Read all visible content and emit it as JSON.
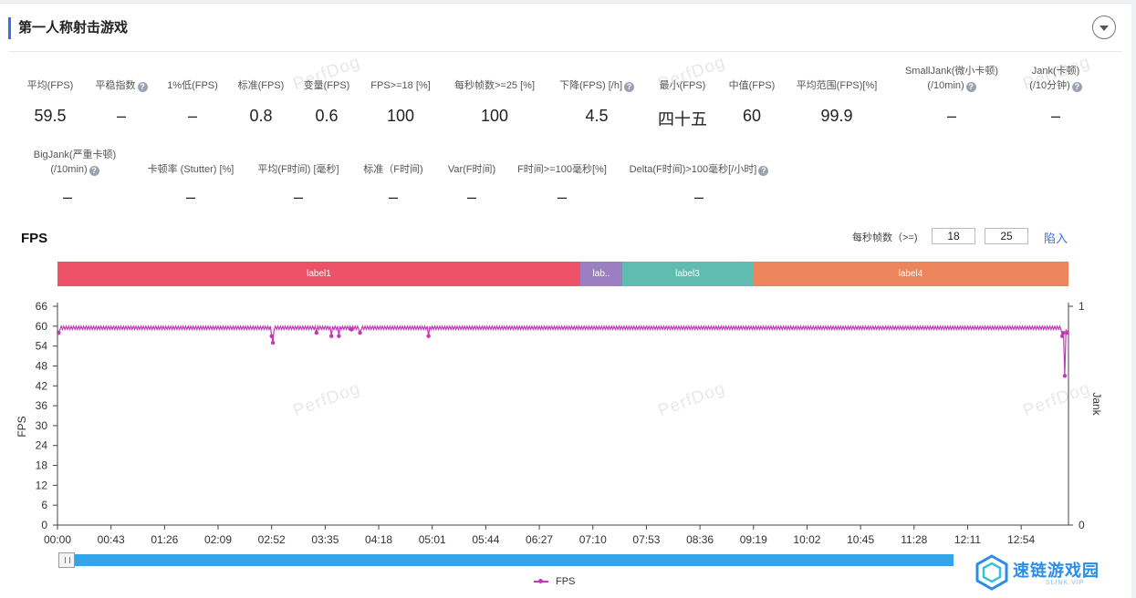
{
  "section": {
    "title": "第一人称射击游戏"
  },
  "watermark_text": "PerfDog",
  "metrics_row1": [
    {
      "label": "平均(FPS)",
      "value": "59.5",
      "help": false
    },
    {
      "label": "平稳指数",
      "value": "–",
      "help": true
    },
    {
      "label": "1%低(FPS)",
      "value": "–",
      "help": false
    },
    {
      "label": "标准(FPS)",
      "value": "0.8",
      "help": false
    },
    {
      "label": "变量(FPS)",
      "value": "0.6",
      "help": false
    },
    {
      "label": "FPS>=18 [%]",
      "value": "100",
      "help": false
    },
    {
      "label": "每秒帧数>=25 [%]",
      "value": "100",
      "help": false
    },
    {
      "label": "下降(FPS) [/h]",
      "value": "4.5",
      "help": true
    },
    {
      "label": "最小(FPS)",
      "value": "四十五",
      "help": false
    },
    {
      "label": "中值(FPS)",
      "value": "60",
      "help": false
    },
    {
      "label": "平均范围(FPS)[%]",
      "value": "99.9",
      "help": false
    },
    {
      "label": "SmallJank(微小卡顿)",
      "label2": "(/10min)",
      "value": "–",
      "help": true
    },
    {
      "label": "Jank(卡顿)",
      "label2": "(/10分钟)",
      "value": "–",
      "help": true
    }
  ],
  "metrics_row2": [
    {
      "label": "BigJank(严重卡顿)",
      "label2": "(/10min)",
      "value": "–",
      "help": true
    },
    {
      "label": "卡顿率 (Stutter) [%]",
      "value": "–",
      "help": false
    },
    {
      "label": "平均(F时间) [毫秒]",
      "value": "–",
      "help": false
    },
    {
      "label": "标准（F时间)",
      "value": "–",
      "help": false
    },
    {
      "label": "Var(F时间)",
      "value": "–",
      "help": false
    },
    {
      "label": "F时间>=100毫秒[%]",
      "value": "–",
      "help": false
    },
    {
      "label": "Delta(F时间)>100毫秒[/小时]",
      "value": "–",
      "help": true
    }
  ],
  "fps_section": {
    "title": "FPS",
    "threshold_label": "每秒帧数（>=)",
    "threshold_1": "18",
    "threshold_2": "25",
    "apply_label": "陷入"
  },
  "labels": [
    {
      "name": "label1",
      "color": "#ee5268"
    },
    {
      "name": "lab..",
      "color": "#9b7fc2"
    },
    {
      "name": "label3",
      "color": "#5ebcb1"
    },
    {
      "name": "label4",
      "color": "#ec845c"
    }
  ],
  "legend": {
    "series_name": "FPS"
  },
  "logo": {
    "text": "速链游戏园",
    "sub": "SLINK.VIP"
  },
  "chart_data": {
    "type": "line",
    "ylabel": "FPS",
    "y2label": "Jank",
    "ylim": [
      0,
      66
    ],
    "yticks": [
      0,
      6,
      12,
      18,
      24,
      30,
      36,
      42,
      48,
      54,
      60,
      66
    ],
    "y2lim": [
      0,
      1
    ],
    "y2ticks": [
      0,
      1
    ],
    "xticks": [
      "00:00",
      "00:43",
      "01:26",
      "02:09",
      "02:52",
      "03:35",
      "04:18",
      "05:01",
      "05:44",
      "06:27",
      "07:10",
      "07:53",
      "08:36",
      "09:19",
      "10:02",
      "10:45",
      "11:28",
      "12:11",
      "12:54"
    ],
    "x_unit": "mm:ss",
    "x_end": "13:32",
    "label_segments": [
      {
        "name": "label1",
        "start": "00:00",
        "end": "06:46"
      },
      {
        "name": "lab..",
        "start": "06:46",
        "end": "07:19"
      },
      {
        "name": "label3",
        "start": "07:19",
        "end": "09:04"
      },
      {
        "name": "label4",
        "start": "09:04",
        "end": "13:32"
      }
    ],
    "series": [
      {
        "name": "FPS",
        "color": "#c03bb5",
        "baseline_values": [
          59,
          60
        ],
        "dips": [
          {
            "t": "00:01",
            "value": 58
          },
          {
            "t": "02:52",
            "value": 57
          },
          {
            "t": "02:53",
            "value": 55
          },
          {
            "t": "03:28",
            "value": 58
          },
          {
            "t": "03:40",
            "value": 57
          },
          {
            "t": "03:46",
            "value": 57
          },
          {
            "t": "03:56",
            "value": 59
          },
          {
            "t": "04:03",
            "value": 58
          },
          {
            "t": "04:58",
            "value": 57
          },
          {
            "t": "13:27",
            "value": 57
          },
          {
            "t": "13:28",
            "value": 58
          },
          {
            "t": "13:29",
            "value": 45
          },
          {
            "t": "13:31",
            "value": 58
          }
        ]
      }
    ],
    "grid": false,
    "legend": "bottom-center"
  }
}
